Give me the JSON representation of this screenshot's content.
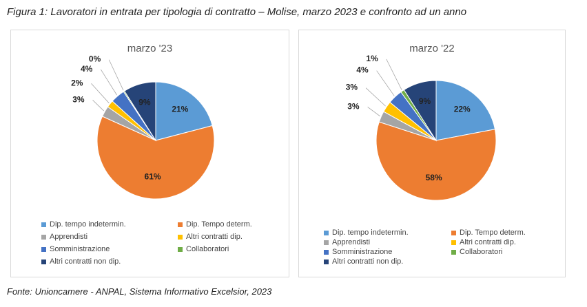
{
  "figure": {
    "title": "Figura 1: Lavoratori in entrata per tipologia di contratto – Molise, marzo 2023 e confronto ad un anno",
    "source": "Fonte: Unioncamere - ANPAL, Sistema Informativo Excelsior, 2023"
  },
  "colors": [
    "#5b9bd5",
    "#ed7d31",
    "#a5a5a5",
    "#ffc000",
    "#4472c4",
    "#70ad47",
    "#264478"
  ],
  "chart_data": [
    {
      "type": "pie",
      "title": "marzo '23",
      "categories": [
        "Dip. tempo indetermin.",
        "Dip. Tempo determ.",
        "Apprendisti",
        "Altri contratti dip.",
        "Somministrazione",
        "Collaboratori",
        "Altri contratti non dip."
      ],
      "values": [
        21,
        61,
        3,
        2,
        4,
        0.3,
        9
      ],
      "labels": [
        "21%",
        "61%",
        "3%",
        "2%",
        "4%",
        "0%",
        "9%"
      ],
      "legend_position": "bottom"
    },
    {
      "type": "pie",
      "title": "marzo '22",
      "categories": [
        "Dip. tempo indetermin.",
        "Dip. Tempo determ.",
        "Apprendisti",
        "Altri contratti dip.",
        "Somministrazione",
        "Collaboratori",
        "Altri contratti non dip."
      ],
      "values": [
        22,
        58,
        3,
        3,
        4,
        1,
        9
      ],
      "labels": [
        "22%",
        "58%",
        "3%",
        "3%",
        "4%",
        "1%",
        "9%"
      ],
      "legend_position": "bottom"
    }
  ]
}
